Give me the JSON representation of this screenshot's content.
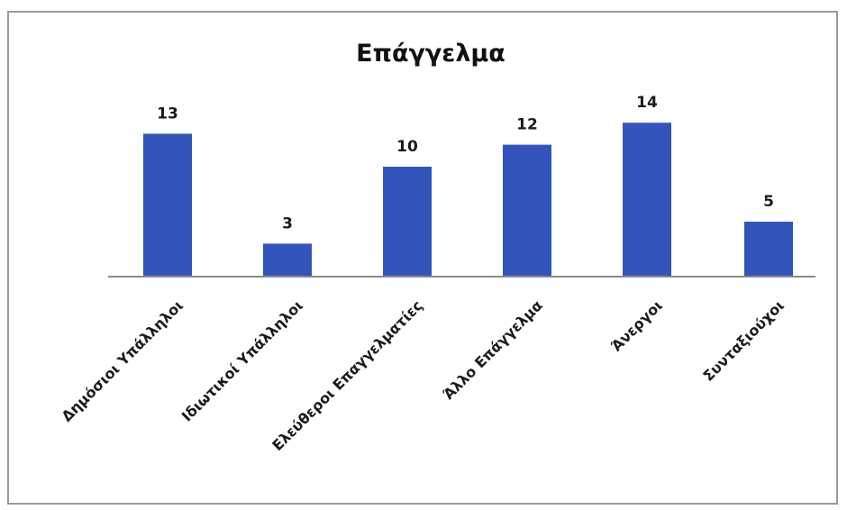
{
  "chart_data": {
    "type": "bar",
    "title": "Επάγγελμα",
    "categories": [
      "Δημόσιοι Υπάλληλοι",
      "Ιδιωτικοί Υπάλληλοι",
      "Ελεύθεροι Επαγγελματίες",
      "Άλλο Επάγγελμα",
      "Άνεργοι",
      "Συνταξιούχοι"
    ],
    "values": [
      13,
      3,
      10,
      12,
      14,
      5
    ],
    "ylim": [
      0,
      14
    ],
    "grid": false,
    "legend": "none",
    "bar_color": "#3355bb",
    "axis_color": "#8a8a8a"
  }
}
